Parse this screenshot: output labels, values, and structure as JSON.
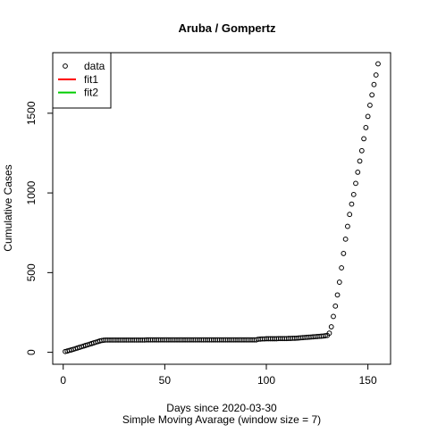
{
  "chart_data": {
    "type": "scatter",
    "title": "Aruba / Gompertz",
    "x_label": "Days since 2020-03-30",
    "subtitle": "Simple Moving Avarage (window size = 7)",
    "y_label": "Cumulative Cases",
    "xlim": [
      -5.16,
      161.16
    ],
    "ylim": [
      -75,
      1880
    ],
    "xticks": [
      0,
      50,
      100,
      150
    ],
    "yticks": [
      0,
      500,
      1000,
      1500
    ],
    "legend_position": "top-left",
    "legend": [
      {
        "label": "data",
        "color": "#000000",
        "marker": "circle"
      },
      {
        "label": "fit1",
        "color": "#ff0000",
        "marker": "line"
      },
      {
        "label": "fit2",
        "color": "#00cd00",
        "marker": "line"
      }
    ],
    "series": [
      {
        "name": "data",
        "color": "#000000",
        "x": [
          1,
          2,
          3,
          4,
          5,
          6,
          7,
          8,
          9,
          10,
          11,
          12,
          13,
          14,
          15,
          16,
          17,
          18,
          19,
          20,
          21,
          22,
          23,
          24,
          25,
          26,
          27,
          28,
          29,
          30,
          31,
          32,
          33,
          34,
          35,
          36,
          37,
          38,
          39,
          40,
          41,
          42,
          43,
          44,
          45,
          46,
          47,
          48,
          49,
          50,
          51,
          52,
          53,
          54,
          55,
          56,
          57,
          58,
          59,
          60,
          61,
          62,
          63,
          64,
          65,
          66,
          67,
          68,
          69,
          70,
          71,
          72,
          73,
          74,
          75,
          76,
          77,
          78,
          79,
          80,
          81,
          82,
          83,
          84,
          85,
          86,
          87,
          88,
          89,
          90,
          91,
          92,
          93,
          94,
          95,
          96,
          97,
          98,
          99,
          100,
          101,
          102,
          103,
          104,
          105,
          106,
          107,
          108,
          109,
          110,
          111,
          112,
          113,
          114,
          115,
          116,
          117,
          118,
          119,
          120,
          121,
          122,
          123,
          124,
          125,
          126,
          127,
          128,
          129,
          130,
          131,
          132,
          133,
          134,
          135,
          136,
          137,
          138,
          139,
          140,
          141,
          142,
          143,
          144,
          145,
          146,
          147,
          148,
          149,
          150,
          151,
          152,
          153,
          154,
          155
        ],
        "values": [
          5,
          8,
          12,
          15,
          19,
          23,
          27,
          31,
          35,
          39,
          43,
          47,
          51,
          55,
          59,
          63,
          67,
          71,
          74,
          76,
          77,
          77,
          77,
          77,
          77,
          77,
          77,
          77,
          77,
          77,
          77,
          77,
          77,
          77,
          77,
          77,
          77,
          77,
          77,
          77,
          78,
          78,
          78,
          78,
          78,
          78,
          78,
          78,
          78,
          78,
          78,
          78,
          78,
          78,
          78,
          78,
          78,
          78,
          78,
          78,
          78,
          78,
          78,
          78,
          78,
          78,
          78,
          78,
          78,
          78,
          78,
          78,
          78,
          78,
          78,
          78,
          78,
          78,
          78,
          78,
          78,
          78,
          78,
          78,
          78,
          78,
          78,
          78,
          78,
          78,
          78,
          78,
          78,
          78,
          78,
          82,
          83,
          84,
          84,
          85,
          85,
          85,
          85,
          85,
          85,
          86,
          86,
          86,
          86,
          86,
          87,
          87,
          88,
          88,
          89,
          90,
          91,
          92,
          93,
          94,
          95,
          96,
          97,
          98,
          99,
          100,
          101,
          102,
          104,
          106,
          120,
          160,
          225,
          290,
          360,
          440,
          530,
          620,
          710,
          790,
          865,
          930,
          990,
          1060,
          1130,
          1200,
          1265,
          1340,
          1410,
          1480,
          1550,
          1615,
          1680,
          1740,
          1810
        ]
      }
    ]
  }
}
